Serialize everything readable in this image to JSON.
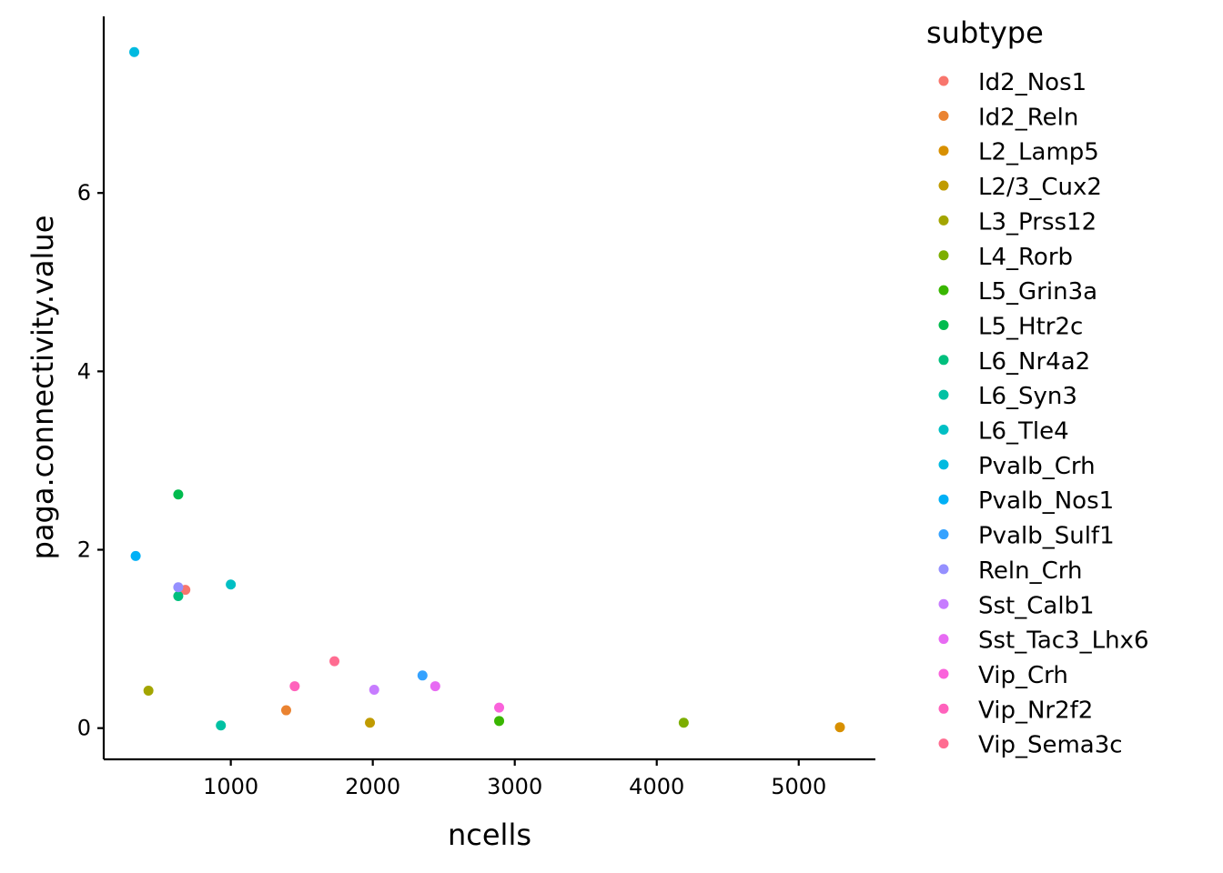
{
  "chart_data": {
    "type": "scatter",
    "xlabel": "ncells",
    "ylabel": "paga.connectivity.value",
    "xlim": [
      105,
      5540
    ],
    "ylim": [
      -0.35,
      7.98
    ],
    "x_ticks": [
      1000,
      2000,
      3000,
      4000,
      5000
    ],
    "y_ticks": [
      0,
      2,
      4,
      6
    ],
    "grid": false,
    "legend": {
      "title": "subtype",
      "placement": "right"
    },
    "series": [
      {
        "name": "Id2_Nos1",
        "color": "#F8766D",
        "points": [
          [
            680,
            1.55
          ]
        ]
      },
      {
        "name": "Id2_Reln",
        "color": "#EA8331",
        "points": [
          [
            1390,
            0.2
          ]
        ]
      },
      {
        "name": "L2_Lamp5",
        "color": "#D89000",
        "points": [
          [
            5290,
            0.01
          ]
        ]
      },
      {
        "name": "L2/3_Cux2",
        "color": "#C09B00",
        "points": [
          [
            1980,
            0.06
          ]
        ]
      },
      {
        "name": "L3_Prss12",
        "color": "#A3A500",
        "points": [
          [
            420,
            0.42
          ]
        ]
      },
      {
        "name": "L4_Rorb",
        "color": "#7CAE00",
        "points": [
          [
            4190,
            0.06
          ]
        ]
      },
      {
        "name": "L5_Grin3a",
        "color": "#39B600",
        "points": [
          [
            2890,
            0.08
          ]
        ]
      },
      {
        "name": "L5_Htr2c",
        "color": "#00BB4E",
        "points": [
          [
            630,
            2.62
          ]
        ]
      },
      {
        "name": "L6_Nr4a2",
        "color": "#00BF7D",
        "points": [
          [
            630,
            1.48
          ]
        ]
      },
      {
        "name": "L6_Syn3",
        "color": "#00C1A3",
        "points": [
          [
            930,
            0.03
          ]
        ]
      },
      {
        "name": "L6_Tle4",
        "color": "#00BFC4",
        "points": [
          [
            1000,
            1.61
          ]
        ]
      },
      {
        "name": "Pvalb_Crh",
        "color": "#00BAE0",
        "points": [
          [
            320,
            7.58
          ]
        ]
      },
      {
        "name": "Pvalb_Nos1",
        "color": "#00B0F6",
        "points": [
          [
            330,
            1.93
          ]
        ]
      },
      {
        "name": "Pvalb_Sulf1",
        "color": "#35A2FF",
        "points": [
          [
            2350,
            0.59
          ]
        ]
      },
      {
        "name": "Reln_Crh",
        "color": "#9590FF",
        "points": [
          [
            630,
            1.58
          ]
        ]
      },
      {
        "name": "Sst_Calb1",
        "color": "#C77CFF",
        "points": [
          [
            2010,
            0.43
          ]
        ]
      },
      {
        "name": "Sst_Tac3_Lhx6",
        "color": "#E76BF3",
        "points": [
          [
            2440,
            0.47
          ]
        ]
      },
      {
        "name": "Vip_Crh",
        "color": "#FA62DB",
        "points": [
          [
            2890,
            0.23
          ]
        ]
      },
      {
        "name": "Vip_Nr2f2",
        "color": "#FF62BC",
        "points": [
          [
            1450,
            0.47
          ]
        ]
      },
      {
        "name": "Vip_Sema3c",
        "color": "#FF6C91",
        "points": [
          [
            1730,
            0.75
          ]
        ]
      }
    ]
  }
}
